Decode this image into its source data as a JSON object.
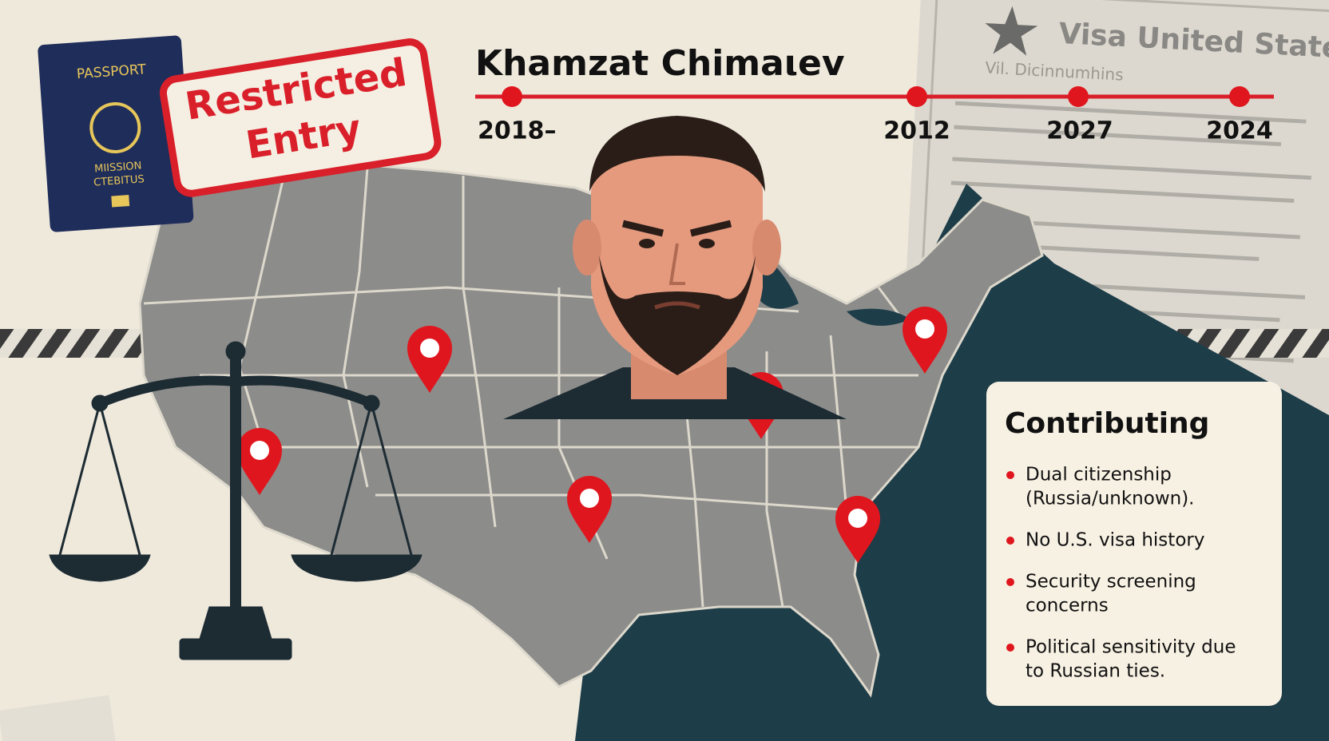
{
  "passport": {
    "title": "PASSPORT",
    "caption": [
      "MIISSION",
      "CTEBITUS"
    ]
  },
  "stamp": {
    "lines": [
      "Restricted",
      "Entry"
    ]
  },
  "header": {
    "title": "Khamzat Chimaιev"
  },
  "timeline": {
    "labels": [
      "2018–",
      "2012",
      "2027",
      "2024"
    ]
  },
  "document": {
    "title": "Visa United States",
    "subtitle": "Vil. Dicinnumhins"
  },
  "panel": {
    "heading": "Contributing",
    "bullets": [
      [
        "Dual citizenship",
        "(Russia/unknown)."
      ],
      [
        "No U.S. visa history"
      ],
      [
        "Security screening",
        "concerns"
      ],
      [
        "Political sensitivity due",
        "to Russian ties."
      ]
    ]
  }
}
